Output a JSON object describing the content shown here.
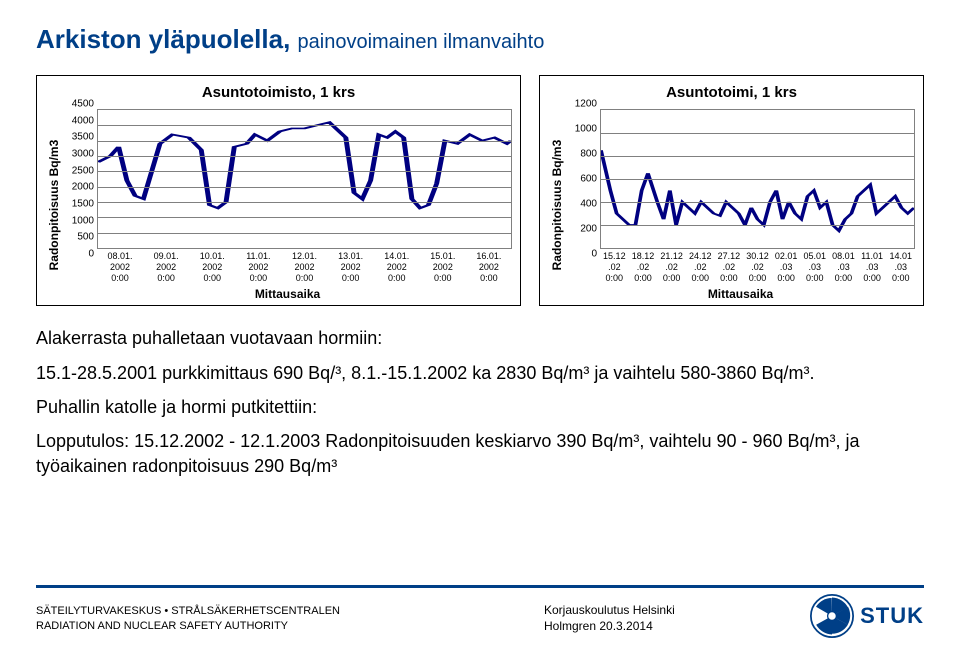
{
  "title": {
    "main": "Arkiston yläpuolella, ",
    "sub": "painovoimainen ilmanvaihto",
    "color": "#003f87"
  },
  "chart_left": {
    "type": "line",
    "title": "Asuntotoimisto, 1 krs",
    "ylabel": "Radonpitoisuus Bq/m3",
    "xlabel": "Mittausaika",
    "ylim": [
      0,
      4500
    ],
    "ytick_step": 500,
    "yticks": [
      "0",
      "500",
      "1000",
      "1500",
      "2000",
      "2500",
      "3000",
      "3500",
      "4000",
      "4500"
    ],
    "xlabels": [
      "08.01.\n2002\n0:00",
      "09.01.\n2002\n0:00",
      "10.01.\n2002\n0:00",
      "11.01.\n2002\n0:00",
      "12.01.\n2002\n0:00",
      "13.01.\n2002\n0:00",
      "14.01.\n2002\n0:00",
      "15.01.\n2002\n0:00",
      "16.01.\n2002\n0:00"
    ],
    "line_color": "#000080",
    "grid_color": "#808080",
    "points": [
      [
        0,
        2800
      ],
      [
        3,
        3000
      ],
      [
        5,
        3300
      ],
      [
        7,
        2200
      ],
      [
        9,
        1700
      ],
      [
        11,
        1600
      ],
      [
        13,
        2500
      ],
      [
        15,
        3400
      ],
      [
        18,
        3700
      ],
      [
        22,
        3600
      ],
      [
        25,
        3200
      ],
      [
        27,
        1400
      ],
      [
        29,
        1300
      ],
      [
        31,
        1500
      ],
      [
        33,
        3300
      ],
      [
        36,
        3400
      ],
      [
        38,
        3700
      ],
      [
        41,
        3500
      ],
      [
        44,
        3800
      ],
      [
        47,
        3900
      ],
      [
        50,
        3900
      ],
      [
        53,
        4000
      ],
      [
        56,
        4100
      ],
      [
        60,
        3600
      ],
      [
        62,
        1800
      ],
      [
        64,
        1600
      ],
      [
        66,
        2200
      ],
      [
        68,
        3700
      ],
      [
        70,
        3600
      ],
      [
        72,
        3800
      ],
      [
        74,
        3600
      ],
      [
        76,
        1600
      ],
      [
        78,
        1300
      ],
      [
        80,
        1400
      ],
      [
        82,
        2100
      ],
      [
        84,
        3500
      ],
      [
        87,
        3400
      ],
      [
        90,
        3700
      ],
      [
        93,
        3500
      ],
      [
        96,
        3600
      ],
      [
        99,
        3400
      ],
      [
        100,
        3500
      ]
    ]
  },
  "chart_right": {
    "type": "line",
    "title": "Asuntotoimi, 1 krs",
    "ylabel": "Radonpitoisuus Bq/m3",
    "xlabel": "Mittausaika",
    "ylim": [
      0,
      1200
    ],
    "ytick_step": 200,
    "yticks": [
      "0",
      "200",
      "400",
      "600",
      "800",
      "1000",
      "1200"
    ],
    "xlabels": [
      "15.12\n.02\n0:00",
      "18.12\n.02\n0:00",
      "21.12\n.02\n0:00",
      "24.12\n.02\n0:00",
      "27.12\n.02\n0:00",
      "30.12\n.02\n0:00",
      "02.01\n.03\n0:00",
      "05.01\n.03\n0:00",
      "08.01\n.03\n0:00",
      "11.01\n.03\n0:00",
      "14.01\n.03\n0:00"
    ],
    "line_color": "#000080",
    "grid_color": "#808080",
    "points": [
      [
        0,
        850
      ],
      [
        3,
        500
      ],
      [
        5,
        300
      ],
      [
        7,
        250
      ],
      [
        9,
        200
      ],
      [
        11,
        200
      ],
      [
        13,
        500
      ],
      [
        15,
        650
      ],
      [
        18,
        400
      ],
      [
        20,
        250
      ],
      [
        22,
        500
      ],
      [
        24,
        200
      ],
      [
        26,
        400
      ],
      [
        28,
        350
      ],
      [
        30,
        300
      ],
      [
        32,
        400
      ],
      [
        34,
        350
      ],
      [
        36,
        300
      ],
      [
        38,
        280
      ],
      [
        40,
        400
      ],
      [
        42,
        350
      ],
      [
        44,
        300
      ],
      [
        46,
        200
      ],
      [
        48,
        350
      ],
      [
        50,
        250
      ],
      [
        52,
        200
      ],
      [
        54,
        400
      ],
      [
        56,
        500
      ],
      [
        58,
        250
      ],
      [
        60,
        400
      ],
      [
        62,
        300
      ],
      [
        64,
        250
      ],
      [
        66,
        450
      ],
      [
        68,
        500
      ],
      [
        70,
        350
      ],
      [
        72,
        400
      ],
      [
        74,
        200
      ],
      [
        76,
        150
      ],
      [
        78,
        250
      ],
      [
        80,
        300
      ],
      [
        82,
        450
      ],
      [
        84,
        500
      ],
      [
        86,
        550
      ],
      [
        88,
        300
      ],
      [
        90,
        350
      ],
      [
        92,
        400
      ],
      [
        94,
        450
      ],
      [
        96,
        350
      ],
      [
        98,
        300
      ],
      [
        100,
        350
      ]
    ]
  },
  "body": {
    "p1": "Alakerrasta puhalletaan vuotavaan hormiin:",
    "p2": "15.1-28.5.2001 purkkimittaus 690 Bq/³, 8.1.-15.1.2002 ka 2830 Bq/m³ ja vaihtelu 580-3860 Bq/m³.",
    "p3": "Puhallin katolle ja hormi putkitettiin:",
    "p4": "Lopputulos: 15.12.2002 - 12.1.2003 Radonpitoisuuden keskiarvo 390 Bq/m³, vaihtelu 90 - 960 Bq/m³, ja työaikainen radonpitoisuus 290 Bq/m³"
  },
  "footer": {
    "line1": "SÄTEILYTURVAKESKUS • STRÅLSÄKERHETSCENTRALEN",
    "line2": "RADIATION AND NUCLEAR SAFETY AUTHORITY",
    "mid1": "Korjauskoulutus Helsinki",
    "mid2": "Holmgren 20.3.2014",
    "logo_text": "STUK",
    "logo_color": "#003f87",
    "sep_color": "#003f87"
  }
}
